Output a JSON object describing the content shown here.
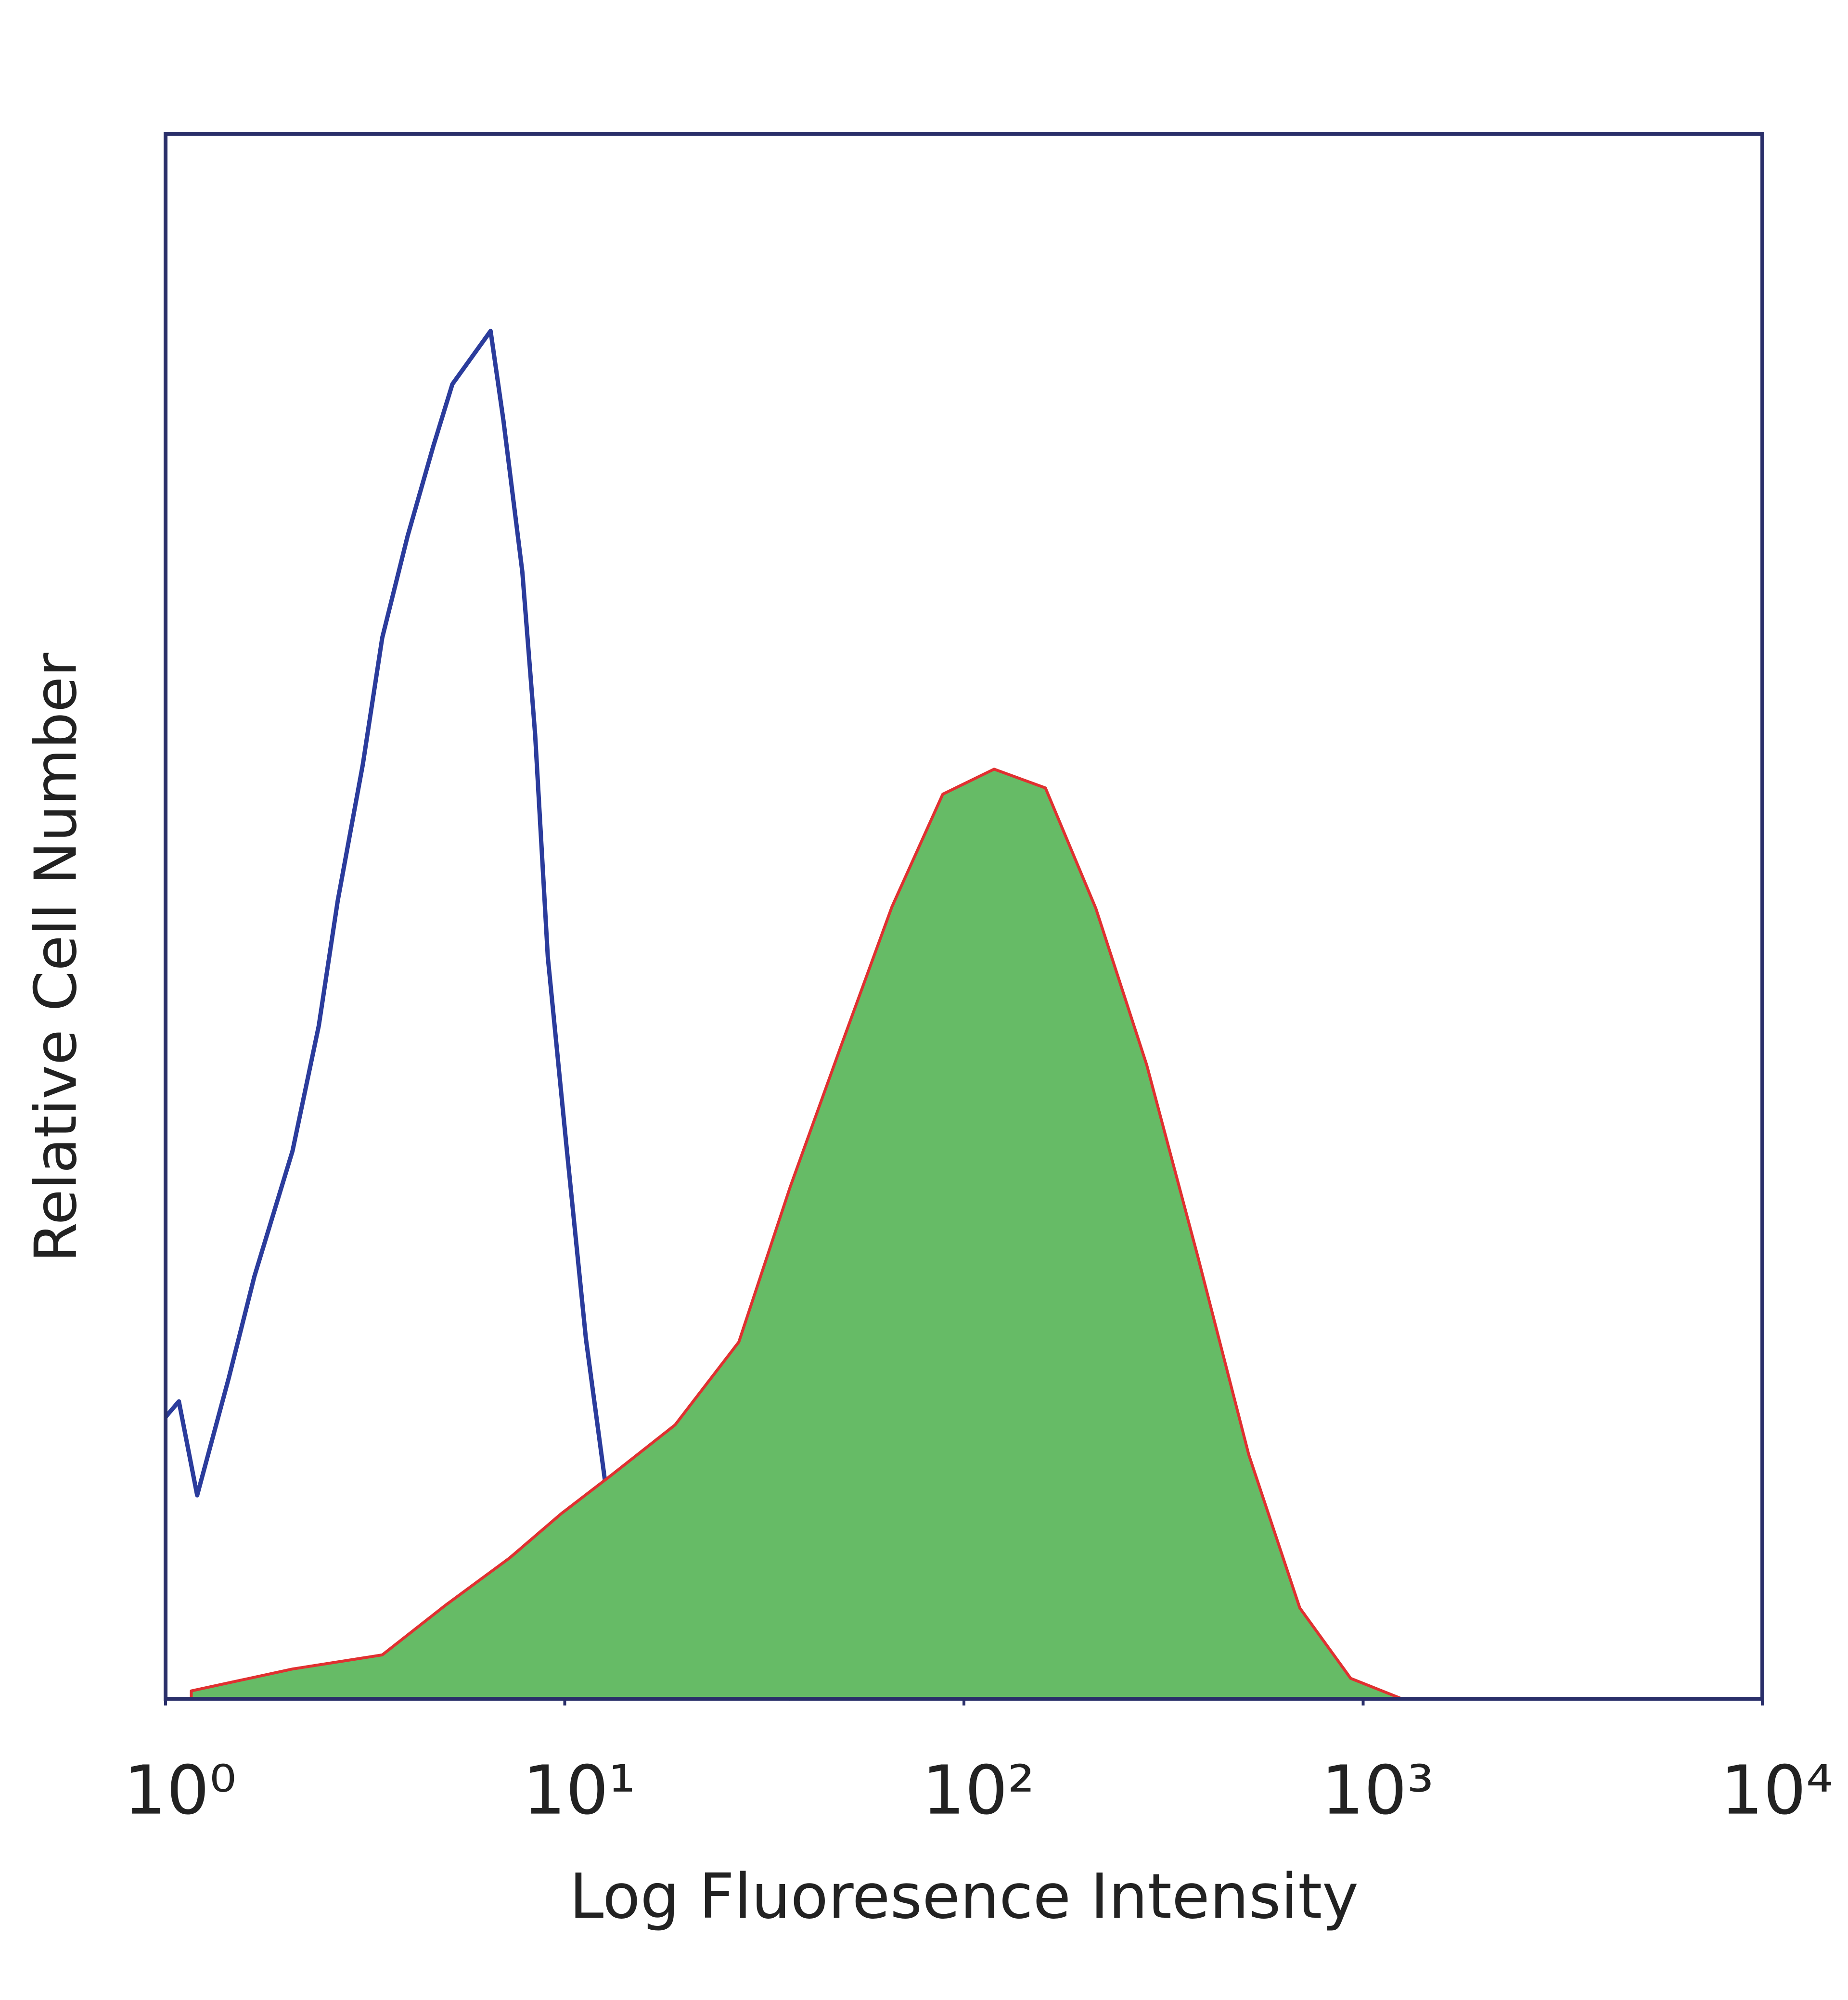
{
  "chart_data": {
    "type": "histogram-overlay",
    "x_label": "Log Fluoresence Intensity",
    "y_label": "Relative Cell Number",
    "xscale": "log",
    "xlim": [
      1,
      10000
    ],
    "xticks": [
      {
        "value": 1,
        "label": "10⁰"
      },
      {
        "value": 10,
        "label": "10¹"
      },
      {
        "value": 100,
        "label": "10²"
      },
      {
        "value": 1000,
        "label": "10³"
      },
      {
        "value": 10000,
        "label": "10⁴"
      }
    ],
    "ylim": [
      0,
      100
    ],
    "grid": false,
    "series": [
      {
        "color": "#2b3c9c",
        "fill": "none",
        "x": [
          1,
          1.08,
          1.2,
          1.44,
          1.67,
          2.08,
          2.42,
          2.7,
          3.12,
          3.49,
          4.04,
          4.68,
          5.23,
          5.84,
          6.52,
          7.02,
          7.83,
          8.43,
          9.07,
          10.1,
          11.3,
          12.6,
          14.1,
          16.3,
          20.4,
          27.3,
          36.7
        ],
        "values": [
          18,
          19,
          13,
          20.5,
          27,
          35,
          43,
          51,
          59.7,
          67.8,
          74.3,
          80,
          84,
          85.7,
          87.4,
          81.7,
          72,
          61.6,
          47.4,
          35.3,
          23,
          14,
          7.5,
          3.5,
          1.9,
          0.65,
          0
        ]
      },
      {
        "color": "#e03030",
        "fill": "#66bb66",
        "x": [
          1.16,
          2.08,
          3.49,
          5.04,
          7.28,
          9.77,
          13.1,
          18.9,
          27.3,
          36.7,
          49.2,
          66,
          88.5,
          119,
          160,
          214,
          287,
          385,
          517,
          694,
          931,
          1250
        ],
        "values": [
          0.5,
          1.9,
          2.8,
          6,
          9,
          11.8,
          14.3,
          17.5,
          22.8,
          32.7,
          41.7,
          50.6,
          57.8,
          59.4,
          58.2,
          50.5,
          40.5,
          28.3,
          15.6,
          5.8,
          1.3,
          0
        ]
      }
    ]
  }
}
